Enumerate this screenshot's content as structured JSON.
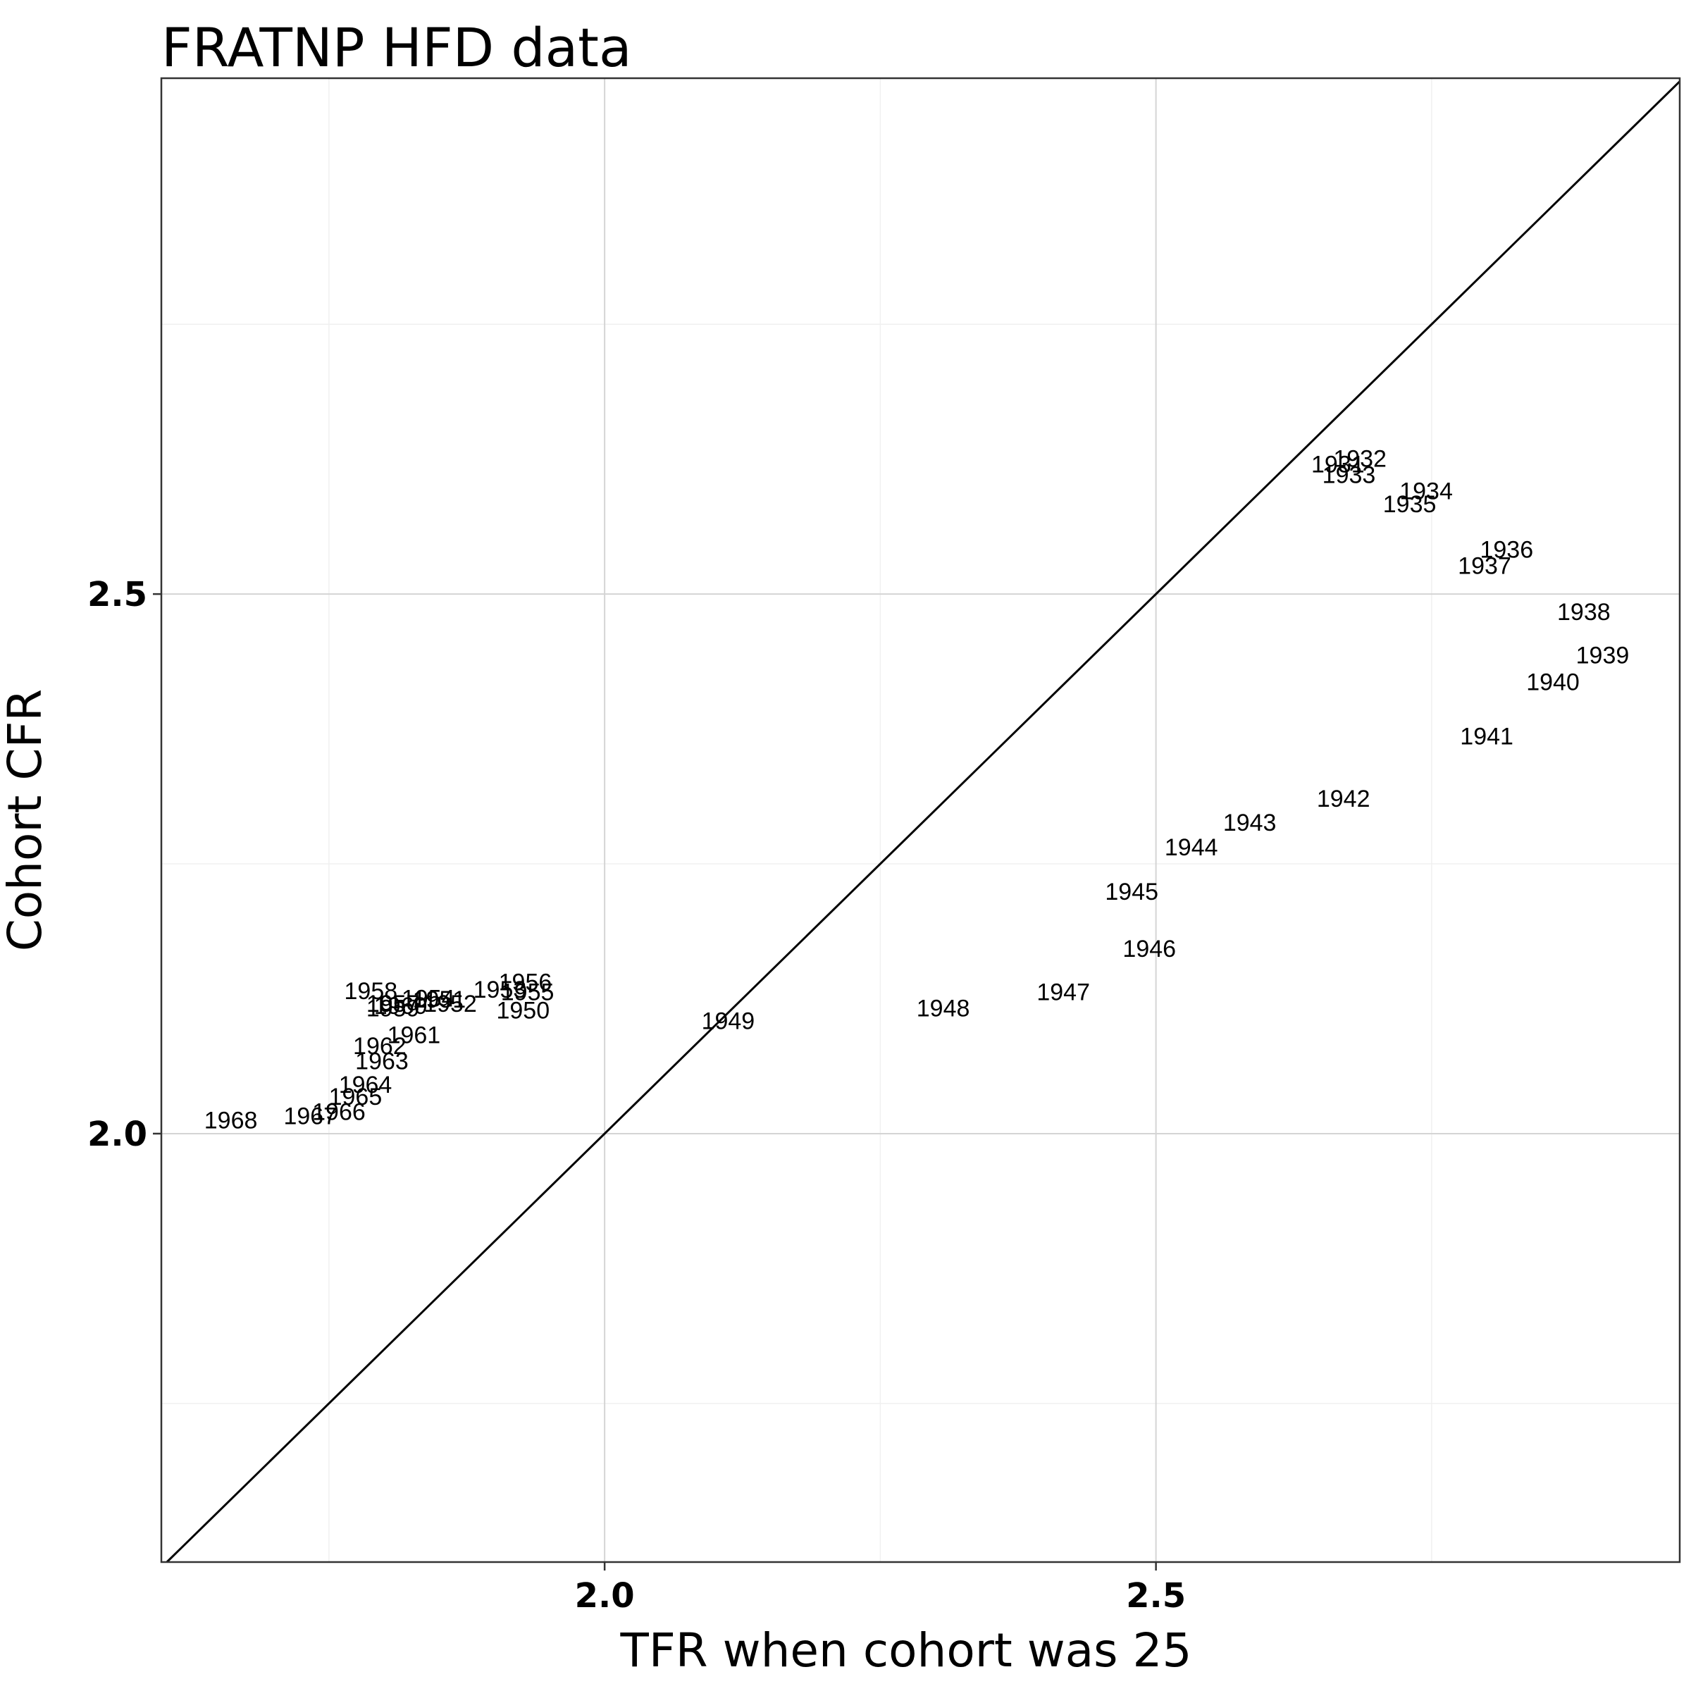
{
  "chart_data": {
    "type": "scatter",
    "title": "FRATNP HFD data",
    "xlabel": "TFR when cohort was 25",
    "ylabel": "Cohort CFR",
    "xlim": [
      1.598,
      2.975
    ],
    "ylim": [
      1.603,
      2.978
    ],
    "x_ticks": [
      {
        "value": 2.0,
        "label": "2.0"
      },
      {
        "value": 2.5,
        "label": "2.5"
      }
    ],
    "y_ticks": [
      {
        "value": 2.0,
        "label": "2.0"
      },
      {
        "value": 2.5,
        "label": "2.5"
      }
    ],
    "x_minor": [
      1.75,
      2.25,
      2.75
    ],
    "y_minor": [
      1.75,
      2.25,
      2.75
    ],
    "grid": true,
    "reference_line": "y = x",
    "marker": "text label (cohort year)",
    "points": [
      {
        "label": "1931",
        "x": 2.665,
        "y": 2.62
      },
      {
        "label": "1932",
        "x": 2.685,
        "y": 2.625
      },
      {
        "label": "1933",
        "x": 2.675,
        "y": 2.61
      },
      {
        "label": "1934",
        "x": 2.745,
        "y": 2.595
      },
      {
        "label": "1935",
        "x": 2.73,
        "y": 2.583
      },
      {
        "label": "1936",
        "x": 2.818,
        "y": 2.541
      },
      {
        "label": "1937",
        "x": 2.798,
        "y": 2.526
      },
      {
        "label": "1938",
        "x": 2.888,
        "y": 2.483
      },
      {
        "label": "1939",
        "x": 2.905,
        "y": 2.443
      },
      {
        "label": "1940",
        "x": 2.86,
        "y": 2.418
      },
      {
        "label": "1941",
        "x": 2.8,
        "y": 2.368
      },
      {
        "label": "1942",
        "x": 2.67,
        "y": 2.31
      },
      {
        "label": "1943",
        "x": 2.585,
        "y": 2.288
      },
      {
        "label": "1944",
        "x": 2.532,
        "y": 2.265
      },
      {
        "label": "1945",
        "x": 2.478,
        "y": 2.224
      },
      {
        "label": "1946",
        "x": 2.494,
        "y": 2.171
      },
      {
        "label": "1947",
        "x": 2.416,
        "y": 2.131
      },
      {
        "label": "1948",
        "x": 2.307,
        "y": 2.116
      },
      {
        "label": "1949",
        "x": 2.112,
        "y": 2.104
      },
      {
        "label": "1950",
        "x": 1.926,
        "y": 2.114
      },
      {
        "label": "1951",
        "x": 1.85,
        "y": 2.124
      },
      {
        "label": "1952",
        "x": 1.86,
        "y": 2.12
      },
      {
        "label": "1953",
        "x": 1.905,
        "y": 2.133
      },
      {
        "label": "1954",
        "x": 1.84,
        "y": 2.125
      },
      {
        "label": "1955",
        "x": 1.93,
        "y": 2.131
      },
      {
        "label": "1956",
        "x": 1.928,
        "y": 2.14
      },
      {
        "label": "1957",
        "x": 1.808,
        "y": 2.12
      },
      {
        "label": "1958",
        "x": 1.788,
        "y": 2.132
      },
      {
        "label": "1959",
        "x": 1.808,
        "y": 2.116
      },
      {
        "label": "1960",
        "x": 1.815,
        "y": 2.118
      },
      {
        "label": "1961",
        "x": 1.827,
        "y": 2.091
      },
      {
        "label": "1962",
        "x": 1.796,
        "y": 2.081
      },
      {
        "label": "1963",
        "x": 1.798,
        "y": 2.067
      },
      {
        "label": "1964",
        "x": 1.783,
        "y": 2.045
      },
      {
        "label": "1965",
        "x": 1.774,
        "y": 2.034
      },
      {
        "label": "1966",
        "x": 1.759,
        "y": 2.02
      },
      {
        "label": "1967",
        "x": 1.733,
        "y": 2.016
      },
      {
        "label": "1968",
        "x": 1.661,
        "y": 2.012
      }
    ]
  }
}
